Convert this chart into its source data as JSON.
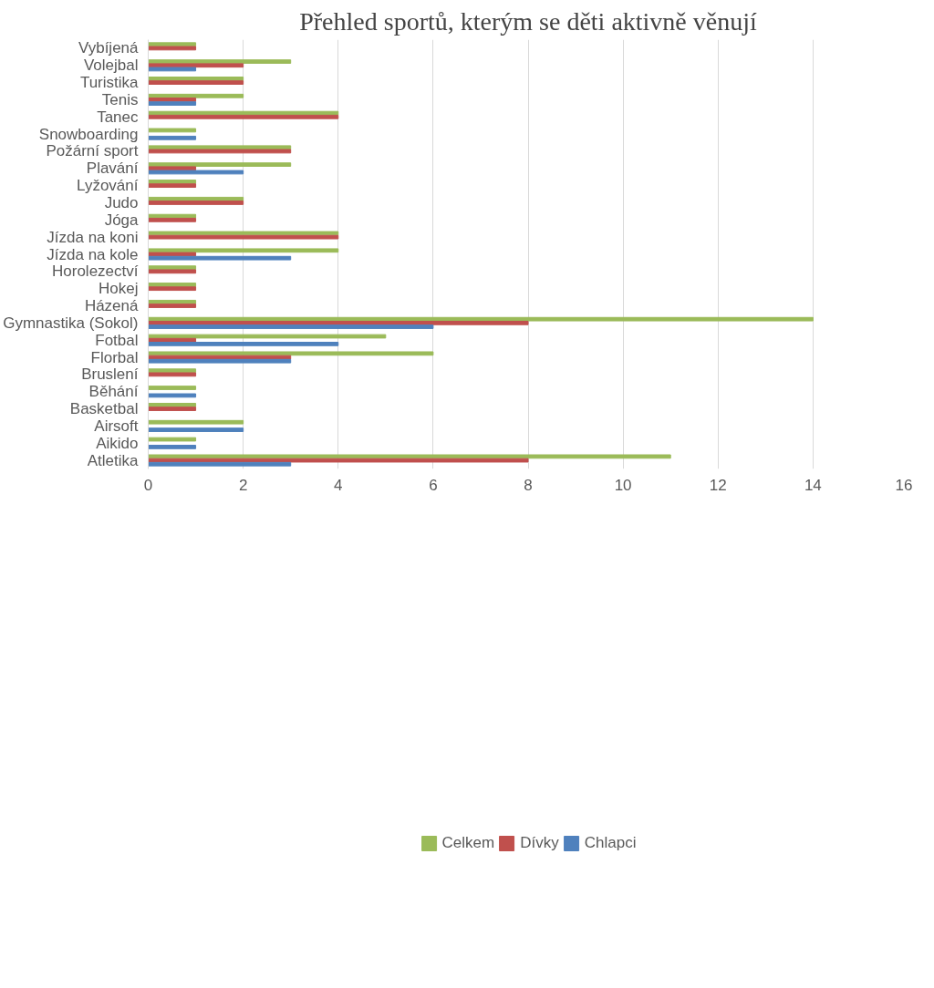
{
  "chart_data": {
    "type": "bar",
    "orientation": "horizontal",
    "title": "Přehled sportů, kterým se děti aktivně věnují",
    "categories": [
      "Vybíjená",
      "Volejbal",
      "Turistika",
      "Tenis",
      "Tanec",
      "Snowboarding",
      "Požární sport",
      "Plavání",
      "Lyžování",
      "Judo",
      "Jóga",
      "Jízda na koni",
      "Jízda na kole",
      "Horolezectví",
      "Hokej",
      "Házená",
      "Gymnastika (Sokol)",
      "Fotbal",
      "Florbal",
      "Bruslení",
      "Běhání",
      "Basketbal",
      "Airsoft",
      "Aikido",
      "Atletika"
    ],
    "series": [
      {
        "name": "Celkem",
        "color": "#9bbb59",
        "values": [
          1,
          3,
          2,
          2,
          4,
          1,
          3,
          3,
          1,
          2,
          1,
          4,
          4,
          1,
          1,
          1,
          14,
          5,
          6,
          1,
          1,
          1,
          2,
          1,
          11
        ]
      },
      {
        "name": "Dívky",
        "color": "#c0504d",
        "values": [
          1,
          2,
          2,
          1,
          4,
          null,
          3,
          1,
          1,
          2,
          1,
          4,
          1,
          1,
          1,
          1,
          8,
          1,
          3,
          1,
          null,
          1,
          null,
          null,
          8
        ]
      },
      {
        "name": "Chlapci",
        "color": "#4f81bd",
        "values": [
          null,
          1,
          null,
          1,
          null,
          1,
          null,
          2,
          null,
          null,
          null,
          null,
          3,
          null,
          null,
          null,
          6,
          4,
          3,
          null,
          1,
          null,
          2,
          1,
          3
        ]
      }
    ],
    "xlim": [
      0,
      16
    ],
    "xticks": [
      0,
      2,
      4,
      6,
      8,
      10,
      12,
      14,
      16
    ],
    "grid": "x",
    "legend": "bottom"
  }
}
